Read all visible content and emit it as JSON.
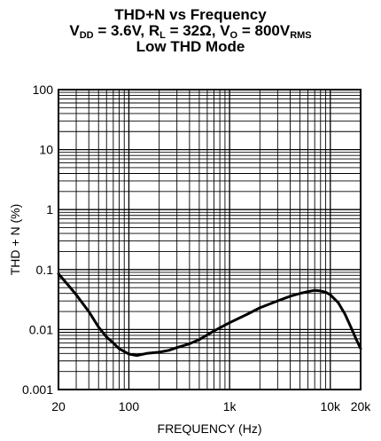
{
  "title": {
    "line1": "THD+N vs Frequency",
    "line2": {
      "vdd_sym": "V",
      "vdd_sub": "DD",
      "vdd_val": " = 3.6V, ",
      "rl_sym": "R",
      "rl_sub": "L",
      "rl_val": " = 32Ω, ",
      "vo_sym": "V",
      "vo_sub": "O",
      "vo_val": " = 800V",
      "vo_unit": "RMS"
    },
    "line3": "Low THD Mode"
  },
  "chart_data": {
    "type": "line",
    "xlabel": "FREQUENCY (Hz)",
    "ylabel": "THD + N (%)",
    "x_scale": "log",
    "y_scale": "log",
    "xlim": [
      20,
      20000
    ],
    "ylim": [
      0.001,
      100
    ],
    "x_ticks": [
      {
        "value": 20,
        "label": "20"
      },
      {
        "value": 100,
        "label": "100"
      },
      {
        "value": 1000,
        "label": "1k"
      },
      {
        "value": 10000,
        "label": "10k"
      },
      {
        "value": 20000,
        "label": "20k"
      }
    ],
    "y_ticks": [
      {
        "value": 0.001,
        "label": "0.001"
      },
      {
        "value": 0.01,
        "label": "0.01"
      },
      {
        "value": 0.1,
        "label": "0.1"
      },
      {
        "value": 1,
        "label": "1"
      },
      {
        "value": 10,
        "label": "10"
      },
      {
        "value": 100,
        "label": "100"
      }
    ],
    "grid": true,
    "series": [
      {
        "color": "#000000",
        "x": [
          20,
          25,
          30,
          40,
          50,
          60,
          70,
          80,
          100,
          120,
          150,
          200,
          250,
          300,
          400,
          500,
          700,
          1000,
          1500,
          2000,
          3000,
          4000,
          5000,
          6000,
          7000,
          8000,
          9000,
          10000,
          12000,
          14000,
          16000,
          18000,
          20000
        ],
        "y": [
          0.085,
          0.055,
          0.038,
          0.02,
          0.011,
          0.0075,
          0.006,
          0.0048,
          0.0039,
          0.0037,
          0.004,
          0.0042,
          0.0045,
          0.005,
          0.0058,
          0.0068,
          0.0095,
          0.013,
          0.018,
          0.023,
          0.03,
          0.036,
          0.04,
          0.043,
          0.045,
          0.044,
          0.042,
          0.038,
          0.028,
          0.018,
          0.011,
          0.007,
          0.0048
        ]
      }
    ]
  }
}
